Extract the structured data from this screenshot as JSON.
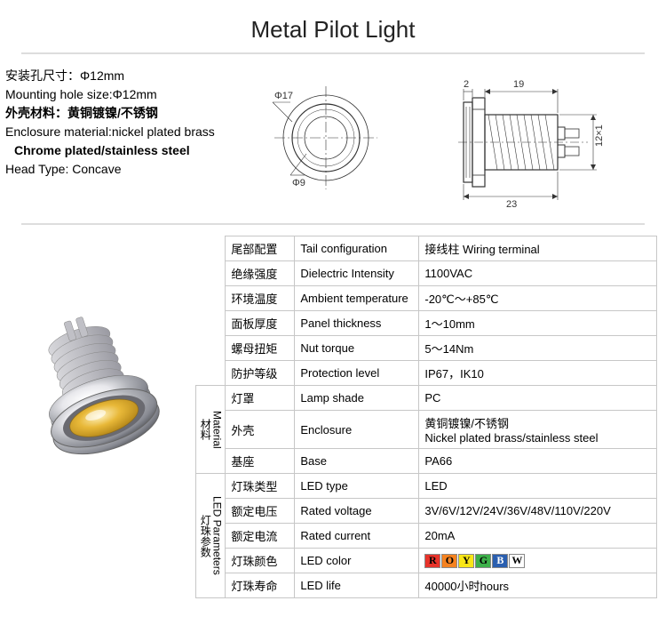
{
  "title": "Metal Pilot Light",
  "specText": {
    "l1": "安装孔尺寸：Φ12mm",
    "l2": "Mounting hole size:Φ12mm",
    "l3": "外壳材料：黄铜镀镍/不锈钢",
    "l4": "Enclosure material:nickel plated brass",
    "l5": "Chrome plated/stainless steel",
    "l6": "Head Type: Concave"
  },
  "dimensions": {
    "outer_dia": "Φ17",
    "inner_dia": "Φ9",
    "head_h": "2",
    "thread_h": "19",
    "thread_d": "12×1",
    "total_l": "23"
  },
  "table": {
    "material_label_cn": "材料",
    "material_label_en": "Material",
    "led_label_cn": "灯珠参数",
    "led_label_en": "LED Parameters",
    "rows": [
      {
        "cn": "尾部配置",
        "en": "Tail configuration",
        "val": "接线柱 Wiring terminal"
      },
      {
        "cn": "绝缘强度",
        "en": "Dielectric Intensity",
        "val": "1100VAC"
      },
      {
        "cn": "环境温度",
        "en": "Ambient temperature",
        "val": "-20℃～+85℃"
      },
      {
        "cn": "面板厚度",
        "en": "Panel thickness",
        "val": "1～10mm"
      },
      {
        "cn": "螺母扭矩",
        "en": "Nut torque",
        "val": "5～14Nm"
      },
      {
        "cn": "防护等级",
        "en": "Protection level",
        "val": "IP67，IK10"
      }
    ],
    "material_rows": [
      {
        "cn": "灯罩",
        "en": "Lamp shade",
        "val": "PC"
      },
      {
        "cn": "外壳",
        "en": "Enclosure",
        "val": "黄铜镀镍/不锈钢\nNickel plated brass/stainless steel"
      },
      {
        "cn": "基座",
        "en": "Base",
        "val": "PA66"
      }
    ],
    "led_rows": [
      {
        "cn": "灯珠类型",
        "en": "LED type",
        "val": "LED"
      },
      {
        "cn": "额定电压",
        "en": "Rated voltage",
        "val": "3V/6V/12V/24V/36V/48V/110V/220V"
      },
      {
        "cn": "额定电流",
        "en": "Rated current",
        "val": "20mA"
      },
      {
        "cn": "灯珠颜色",
        "en": "LED color",
        "val": "__COLORS__"
      },
      {
        "cn": "灯珠寿命",
        "en": "LED life",
        "val": "40000小时hours"
      }
    ]
  },
  "led_colors": [
    {
      "l": "R",
      "bg": "#e8332a",
      "fg": "#000"
    },
    {
      "l": "O",
      "bg": "#f58220",
      "fg": "#000"
    },
    {
      "l": "Y",
      "bg": "#f9e617",
      "fg": "#000"
    },
    {
      "l": "G",
      "bg": "#3cb049",
      "fg": "#000"
    },
    {
      "l": "B",
      "bg": "#2a5fb0",
      "fg": "#fff"
    },
    {
      "l": "W",
      "bg": "#ffffff",
      "fg": "#000"
    }
  ]
}
